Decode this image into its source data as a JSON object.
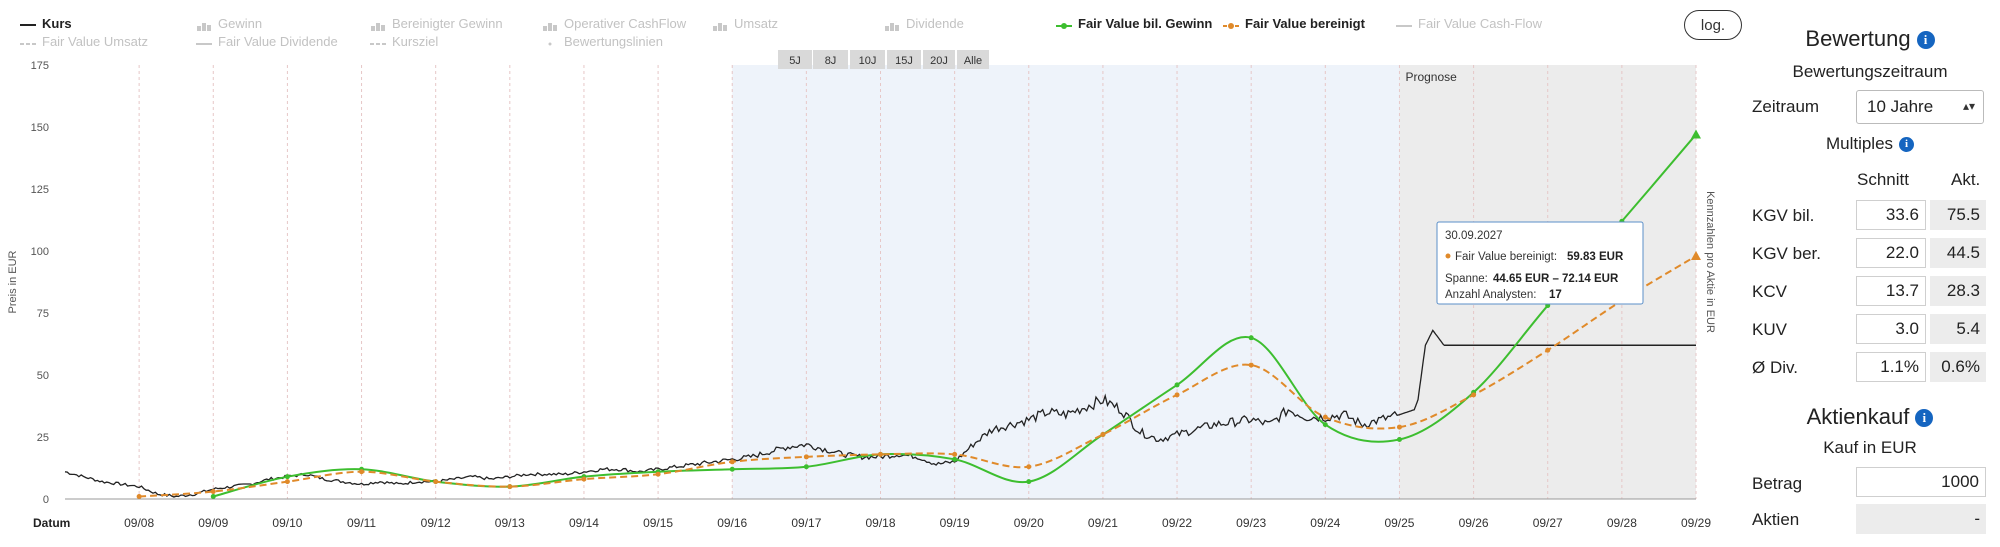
{
  "legend": {
    "items": [
      {
        "key": "kurs",
        "label": "Kurs",
        "active": true,
        "color": "#222222",
        "style": "solid"
      },
      {
        "key": "gewinn",
        "label": "Gewinn",
        "active": false,
        "color": "#c2c2c2",
        "style": "bar"
      },
      {
        "key": "bereinigter_gewinn",
        "label": "Bereinigter Gewinn",
        "active": false,
        "color": "#c2c2c2",
        "style": "bar"
      },
      {
        "key": "op_cashflow",
        "label": "Operativer CashFlow",
        "active": false,
        "color": "#c2c2c2",
        "style": "bar"
      },
      {
        "key": "umsatz",
        "label": "Umsatz",
        "active": false,
        "color": "#c2c2c2",
        "style": "bar"
      },
      {
        "key": "dividende",
        "label": "Dividende",
        "active": false,
        "color": "#c2c2c2",
        "style": "bar"
      },
      {
        "key": "fv_gewinn",
        "label": "Fair Value bil. Gewinn",
        "active": true,
        "color": "#3dbe2f",
        "style": "solid"
      },
      {
        "key": "fv_bereinigt",
        "label": "Fair Value bereinigt",
        "active": true,
        "color": "#e08a2a",
        "style": "dashed"
      },
      {
        "key": "fv_cashflow",
        "label": "Fair Value Cash-Flow",
        "active": false,
        "color": "#c2c2c2",
        "style": "solid"
      },
      {
        "key": "fv_umsatz",
        "label": "Fair Value Umsatz",
        "active": false,
        "color": "#c2c2c2",
        "style": "dashed"
      },
      {
        "key": "fv_dividende",
        "label": "Fair Value Dividende",
        "active": false,
        "color": "#c2c2c2",
        "style": "solid"
      },
      {
        "key": "kursziel",
        "label": "Kursziel",
        "active": false,
        "color": "#c2c2c2",
        "style": "dashed"
      },
      {
        "key": "bewertungslinien",
        "label": "Bewertungslinien",
        "active": false,
        "color": "#c2c2c2",
        "style": "dot"
      }
    ]
  },
  "log_button": "log.",
  "range_buttons": [
    "5J",
    "8J",
    "10J",
    "15J",
    "20J",
    "Alle"
  ],
  "prognose_label": "Prognose",
  "colors": {
    "kurs": "#222222",
    "fv_gewinn": "#3dbe2f",
    "fv_bereinigt": "#e08a2a",
    "highlight": "#eef3fa",
    "prognose": "#ececec",
    "info": "#1565c0"
  },
  "chart_data": {
    "type": "line",
    "ylabel": "Preis in EUR",
    "y2label": "Kennzahlen pro Aktie in EUR",
    "xlabel_prefix": "Datum",
    "ylim": [
      0,
      175
    ],
    "yticks": [
      0,
      25,
      50,
      75,
      100,
      125,
      150,
      175
    ],
    "x_range": [
      2007.75,
      2029.75
    ],
    "x_ticks": [
      {
        "x": 2008.75,
        "label": "09/08"
      },
      {
        "x": 2009.75,
        "label": "09/09"
      },
      {
        "x": 2010.75,
        "label": "09/10"
      },
      {
        "x": 2011.75,
        "label": "09/11"
      },
      {
        "x": 2012.75,
        "label": "09/12"
      },
      {
        "x": 2013.75,
        "label": "09/13"
      },
      {
        "x": 2014.75,
        "label": "09/14"
      },
      {
        "x": 2015.75,
        "label": "09/15"
      },
      {
        "x": 2016.75,
        "label": "09/16"
      },
      {
        "x": 2017.75,
        "label": "09/17"
      },
      {
        "x": 2018.75,
        "label": "09/18"
      },
      {
        "x": 2019.75,
        "label": "09/19"
      },
      {
        "x": 2020.75,
        "label": "09/20"
      },
      {
        "x": 2021.75,
        "label": "09/21"
      },
      {
        "x": 2022.75,
        "label": "09/22"
      },
      {
        "x": 2023.75,
        "label": "09/23"
      },
      {
        "x": 2024.75,
        "label": "09/24"
      },
      {
        "x": 2025.75,
        "label": "09/25"
      },
      {
        "x": 2026.75,
        "label": "09/26"
      },
      {
        "x": 2027.75,
        "label": "09/27"
      },
      {
        "x": 2028.75,
        "label": "09/28"
      },
      {
        "x": 2029.75,
        "label": "09/29"
      }
    ],
    "highlight_range": [
      2016.75,
      2029.75
    ],
    "prognose_range": [
      2025.75,
      2029.75
    ],
    "series": [
      {
        "name": "Kurs",
        "color": "#222222",
        "style": "solid",
        "x": [
          2007.75,
          2008.0,
          2008.25,
          2008.5,
          2008.75,
          2009.0,
          2009.25,
          2009.5,
          2009.75,
          2010.0,
          2010.25,
          2010.5,
          2010.75,
          2011.0,
          2011.25,
          2011.5,
          2011.75,
          2012.0,
          2012.25,
          2012.5,
          2012.75,
          2013.0,
          2013.25,
          2013.5,
          2013.75,
          2014.0,
          2014.25,
          2014.5,
          2014.75,
          2015.0,
          2015.25,
          2015.5,
          2015.75,
          2016.0,
          2016.25,
          2016.5,
          2016.75,
          2017.0,
          2017.25,
          2017.5,
          2017.75,
          2018.0,
          2018.25,
          2018.5,
          2018.75,
          2019.0,
          2019.25,
          2019.5,
          2019.75,
          2020.0,
          2020.25,
          2020.5,
          2020.75,
          2021.0,
          2021.25,
          2021.5,
          2021.75,
          2022.0,
          2022.25,
          2022.5,
          2022.75,
          2023.0,
          2023.25,
          2023.5,
          2023.75,
          2024.0,
          2024.25,
          2024.5,
          2024.75,
          2025.0,
          2025.25,
          2025.5,
          2025.75,
          2025.85,
          2025.95,
          2026.0,
          2026.1,
          2026.2,
          2026.35
        ],
        "y": [
          11,
          9,
          7,
          6,
          5,
          2,
          1,
          2,
          4,
          5,
          6,
          8,
          9,
          10,
          8,
          7,
          6,
          7,
          6,
          7,
          7,
          8,
          9,
          8,
          9,
          10,
          10,
          10,
          11,
          12,
          12,
          11,
          12,
          13,
          14,
          15,
          16,
          17,
          19,
          21,
          22,
          20,
          18,
          17,
          17,
          18,
          17,
          14,
          15,
          22,
          28,
          30,
          32,
          35,
          34,
          37,
          40,
          36,
          27,
          24,
          26,
          28,
          30,
          31,
          32,
          30,
          36,
          33,
          33,
          34,
          30,
          32,
          34,
          35,
          36,
          40,
          62,
          68,
          62
        ]
      },
      {
        "name": "Fair Value bil. Gewinn",
        "color": "#3dbe2f",
        "style": "solid",
        "markers": "dot",
        "x": [
          2009.75,
          2010.75,
          2011.75,
          2012.75,
          2013.75,
          2014.75,
          2015.75,
          2016.75,
          2017.75,
          2018.75,
          2019.75,
          2020.75,
          2021.75,
          2022.75,
          2023.75,
          2024.75,
          2025.75,
          2026.75,
          2027.75,
          2028.75,
          2029.75
        ],
        "y": [
          1,
          9,
          12,
          7,
          5,
          9,
          11,
          12,
          13,
          18,
          16,
          7,
          26,
          46,
          65,
          30,
          24,
          43,
          78,
          112,
          147
        ]
      },
      {
        "name": "Fair Value bereinigt",
        "color": "#e08a2a",
        "style": "dashed",
        "markers": "dot",
        "x": [
          2008.75,
          2009.75,
          2010.75,
          2011.75,
          2012.75,
          2013.75,
          2014.75,
          2015.75,
          2016.75,
          2017.75,
          2018.75,
          2019.75,
          2020.75,
          2021.75,
          2022.75,
          2023.75,
          2024.75,
          2025.75,
          2026.75,
          2027.75,
          2028.75,
          2029.75
        ],
        "y": [
          1,
          3,
          7,
          11,
          7,
          5,
          8,
          10,
          15,
          17,
          18,
          18,
          13,
          26,
          42,
          54,
          33,
          29,
          42,
          60,
          80,
          98
        ]
      }
    ],
    "flat_projection": {
      "x": [
        2026.35,
        2029.75
      ],
      "y": 62
    }
  },
  "tooltip": {
    "date": "30.09.2027",
    "series_label": "Fair Value bereinigt:",
    "series_value": "59.83 EUR",
    "spanne_label": "Spanne:",
    "spanne_value": "44.65 EUR – 72.14 EUR",
    "analysten_label": "Anzahl Analysten:",
    "analysten_value": "17"
  },
  "panel": {
    "bewertung_title": "Bewertung",
    "info_glyph": "i",
    "zeitraum_heading": "Bewertungszeitraum",
    "zeitraum_label": "Zeitraum",
    "zeitraum_value": "10 Jahre",
    "multiples_title": "Multiples",
    "col_schnitt": "Schnitt",
    "col_akt": "Akt.",
    "rows": [
      {
        "label": "KGV bil.",
        "schnitt": "33.6",
        "akt": "75.5"
      },
      {
        "label": "KGV ber.",
        "schnitt": "22.0",
        "akt": "44.5"
      },
      {
        "label": "KCV",
        "schnitt": "13.7",
        "akt": "28.3"
      },
      {
        "label": "KUV",
        "schnitt": "3.0",
        "akt": "5.4"
      },
      {
        "label": "Ø Div.",
        "schnitt": "1.1%",
        "akt": "0.6%"
      }
    ],
    "aktienkauf_title": "Aktienkauf",
    "kauf_heading": "Kauf in EUR",
    "betrag_label": "Betrag",
    "betrag_value": "1000",
    "aktien_label": "Aktien",
    "aktien_value": "-"
  }
}
